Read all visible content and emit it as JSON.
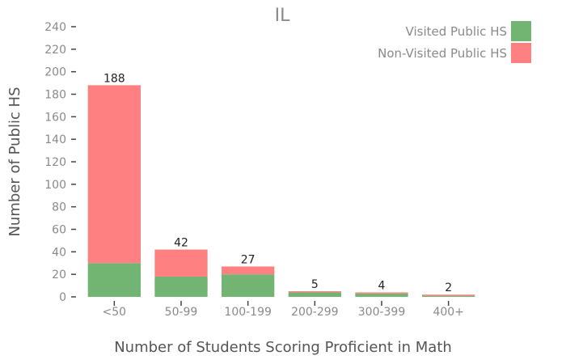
{
  "chart_data": {
    "type": "bar",
    "stacked": true,
    "title": "IL",
    "xlabel": "Number of Students Scoring Proficient in Math",
    "ylabel": "Number of Public HS",
    "categories": [
      "<50",
      "50-99",
      "100-199",
      "200-299",
      "300-399",
      "400+"
    ],
    "series": [
      {
        "name": "Visited Public HS",
        "color": "#72b472",
        "values": [
          30,
          18,
          20,
          4,
          3,
          1
        ]
      },
      {
        "name": "Non-Visited Public HS",
        "color": "#ff8080",
        "values": [
          158,
          24,
          7,
          1,
          1,
          1
        ]
      }
    ],
    "totals": [
      188,
      42,
      27,
      5,
      4,
      2
    ],
    "ylim": [
      0,
      240
    ],
    "yticks": [
      0,
      20,
      40,
      60,
      80,
      100,
      120,
      140,
      160,
      180,
      200,
      220,
      240
    ],
    "grid": false,
    "legend_position": "top-right"
  }
}
